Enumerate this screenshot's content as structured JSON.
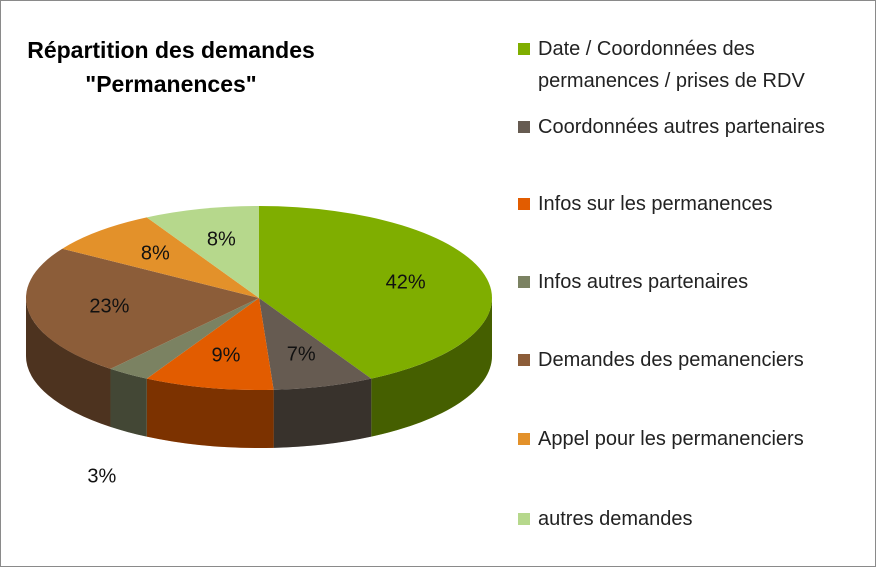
{
  "chart_data": {
    "type": "pie3d",
    "title": "Répartition des demandes \"Permanences\"",
    "categories": [
      "Date / Coordonnées des permanences / prises de RDV",
      "Coordonnées autres partenaires",
      "Infos sur les permanences",
      "Infos autres partenaires",
      "Demandes des pemanenciers",
      "Appel pour les permanenciers",
      "autres demandes"
    ],
    "values": [
      42,
      7,
      9,
      3,
      23,
      8,
      8
    ],
    "value_labels": [
      "42%",
      "7%",
      "9%",
      "3%",
      "23%",
      "8%",
      "8%"
    ],
    "colors": [
      "#7fae00",
      "#665b51",
      "#e25c00",
      "#7b8262",
      "#8c5d39",
      "#e3912a",
      "#b6d88c"
    ]
  }
}
